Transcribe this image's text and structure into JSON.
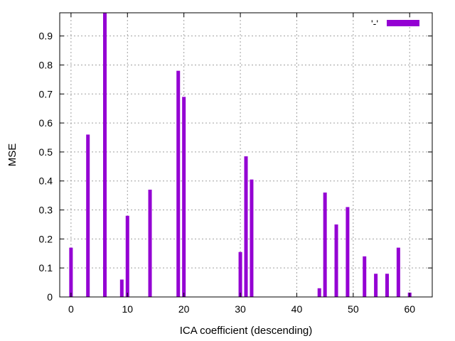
{
  "chart_data": {
    "type": "bar",
    "title": "",
    "xlabel": "ICA coefficient (descending)",
    "ylabel": "MSE",
    "xlim": [
      -2,
      64
    ],
    "ylim": [
      0,
      0.98
    ],
    "xticks": [
      0,
      10,
      20,
      30,
      40,
      50,
      60
    ],
    "yticks": [
      0,
      0.1,
      0.2,
      0.3,
      0.4,
      0.5,
      0.6,
      0.7,
      0.8,
      0.9
    ],
    "grid": true,
    "legend": {
      "position": "top-right",
      "entries": [
        "'-'"
      ]
    },
    "series": [
      {
        "name": "'-'",
        "color": "#9400d3",
        "points": [
          {
            "x": 0,
            "y": 0.17
          },
          {
            "x": 3,
            "y": 0.56
          },
          {
            "x": 6,
            "y": 0.98
          },
          {
            "x": 9,
            "y": 0.06
          },
          {
            "x": 10,
            "y": 0.28
          },
          {
            "x": 14,
            "y": 0.37
          },
          {
            "x": 19,
            "y": 0.78
          },
          {
            "x": 20,
            "y": 0.69
          },
          {
            "x": 30,
            "y": 0.155
          },
          {
            "x": 31,
            "y": 0.485
          },
          {
            "x": 32,
            "y": 0.405
          },
          {
            "x": 44,
            "y": 0.03
          },
          {
            "x": 45,
            "y": 0.36
          },
          {
            "x": 47,
            "y": 0.25
          },
          {
            "x": 49,
            "y": 0.31
          },
          {
            "x": 52,
            "y": 0.14
          },
          {
            "x": 54,
            "y": 0.08
          },
          {
            "x": 56,
            "y": 0.08
          },
          {
            "x": 58,
            "y": 0.17
          },
          {
            "x": 60,
            "y": 0.015
          }
        ]
      }
    ]
  }
}
